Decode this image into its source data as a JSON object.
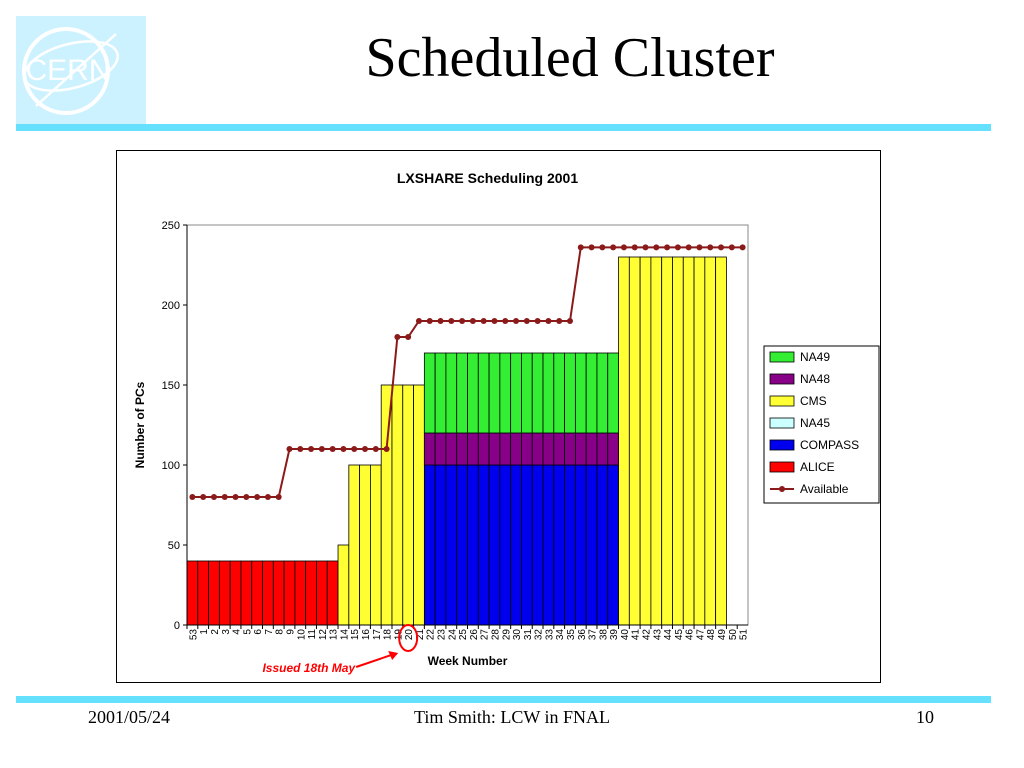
{
  "slide": {
    "title": "Scheduled Cluster",
    "logo_text": "CERN",
    "footer_left": "2001/05/24",
    "footer_center": "Tim Smith:  LCW in FNAL",
    "footer_right": "10"
  },
  "colors": {
    "accent_rule": "#66e0ff",
    "logo_bg": "#ccf2ff",
    "NA49": "#33ee33",
    "NA48": "#880088",
    "CMS": "#ffff33",
    "NA45": "#ccffff",
    "COMPASS": "#0000ee",
    "ALICE": "#ff0000",
    "Available": "#8b1a1a"
  },
  "chart_data": {
    "type": "bar",
    "stacked": true,
    "title": "LXSHARE Scheduling 2001",
    "xlabel": "Week Number",
    "ylabel": "Number of PCs",
    "ylim": [
      0,
      250
    ],
    "yticks": [
      0,
      50,
      100,
      150,
      200,
      250
    ],
    "grid": false,
    "legend_position": "right",
    "categories": [
      "53",
      "1",
      "2",
      "3",
      "4",
      "5",
      "6",
      "7",
      "8",
      "9",
      "10",
      "11",
      "12",
      "13",
      "14",
      "15",
      "16",
      "17",
      "18",
      "19",
      "20",
      "21",
      "22",
      "23",
      "24",
      "25",
      "26",
      "27",
      "28",
      "29",
      "30",
      "31",
      "32",
      "33",
      "34",
      "35",
      "36",
      "37",
      "38",
      "39",
      "40",
      "41",
      "42",
      "43",
      "44",
      "45",
      "46",
      "47",
      "48",
      "49",
      "50",
      "51"
    ],
    "series": [
      {
        "name": "ALICE",
        "values": [
          40,
          40,
          40,
          40,
          40,
          40,
          40,
          40,
          40,
          40,
          40,
          40,
          40,
          40,
          0,
          0,
          0,
          0,
          0,
          0,
          0,
          0,
          0,
          0,
          0,
          0,
          0,
          0,
          0,
          0,
          0,
          0,
          0,
          0,
          0,
          0,
          0,
          0,
          0,
          0,
          0,
          0,
          0,
          0,
          0,
          0,
          0,
          0,
          0,
          0,
          0,
          0
        ]
      },
      {
        "name": "COMPASS",
        "values": [
          0,
          0,
          0,
          0,
          0,
          0,
          0,
          0,
          0,
          0,
          0,
          0,
          0,
          0,
          0,
          0,
          0,
          0,
          0,
          0,
          0,
          0,
          100,
          100,
          100,
          100,
          100,
          100,
          100,
          100,
          100,
          100,
          100,
          100,
          100,
          100,
          100,
          100,
          100,
          100,
          0,
          0,
          0,
          0,
          0,
          0,
          0,
          0,
          0,
          0,
          0,
          0
        ]
      },
      {
        "name": "NA45",
        "values": [
          0,
          0,
          0,
          0,
          0,
          0,
          0,
          0,
          0,
          0,
          0,
          0,
          0,
          0,
          0,
          0,
          0,
          0,
          0,
          0,
          0,
          0,
          0,
          0,
          0,
          0,
          0,
          0,
          0,
          0,
          0,
          0,
          0,
          0,
          0,
          0,
          0,
          0,
          0,
          0,
          0,
          0,
          0,
          0,
          0,
          0,
          0,
          0,
          0,
          0,
          0,
          0
        ]
      },
      {
        "name": "CMS",
        "values": [
          0,
          0,
          0,
          0,
          0,
          0,
          0,
          0,
          0,
          0,
          0,
          0,
          0,
          0,
          50,
          100,
          100,
          100,
          150,
          150,
          150,
          150,
          0,
          0,
          0,
          0,
          0,
          0,
          0,
          0,
          0,
          0,
          0,
          0,
          0,
          0,
          0,
          0,
          0,
          0,
          230,
          230,
          230,
          230,
          230,
          230,
          230,
          230,
          230,
          230,
          0,
          0
        ]
      },
      {
        "name": "NA48",
        "values": [
          0,
          0,
          0,
          0,
          0,
          0,
          0,
          0,
          0,
          0,
          0,
          0,
          0,
          0,
          0,
          0,
          0,
          0,
          0,
          0,
          0,
          0,
          20,
          20,
          20,
          20,
          20,
          20,
          20,
          20,
          20,
          20,
          20,
          20,
          20,
          20,
          20,
          20,
          20,
          20,
          0,
          0,
          0,
          0,
          0,
          0,
          0,
          0,
          0,
          0,
          0,
          0
        ]
      },
      {
        "name": "NA49",
        "values": [
          0,
          0,
          0,
          0,
          0,
          0,
          0,
          0,
          0,
          0,
          0,
          0,
          0,
          0,
          0,
          0,
          0,
          0,
          0,
          0,
          0,
          0,
          50,
          50,
          50,
          50,
          50,
          50,
          50,
          50,
          50,
          50,
          50,
          50,
          50,
          50,
          50,
          50,
          50,
          50,
          0,
          0,
          0,
          0,
          0,
          0,
          0,
          0,
          0,
          0,
          0,
          0
        ]
      }
    ],
    "line_series": {
      "name": "Available",
      "values": [
        80,
        80,
        80,
        80,
        80,
        80,
        80,
        80,
        80,
        110,
        110,
        110,
        110,
        110,
        110,
        110,
        110,
        110,
        110,
        180,
        180,
        190,
        190,
        190,
        190,
        190,
        190,
        190,
        190,
        190,
        190,
        190,
        190,
        190,
        190,
        190,
        236,
        236,
        236,
        236,
        236,
        236,
        236,
        236,
        236,
        236,
        236,
        236,
        236,
        236,
        236,
        236
      ]
    },
    "legend_order": [
      "NA49",
      "NA48",
      "CMS",
      "NA45",
      "COMPASS",
      "ALICE",
      "Available"
    ],
    "annotation": {
      "text": "Issued 18th May",
      "target_category": "20"
    }
  }
}
